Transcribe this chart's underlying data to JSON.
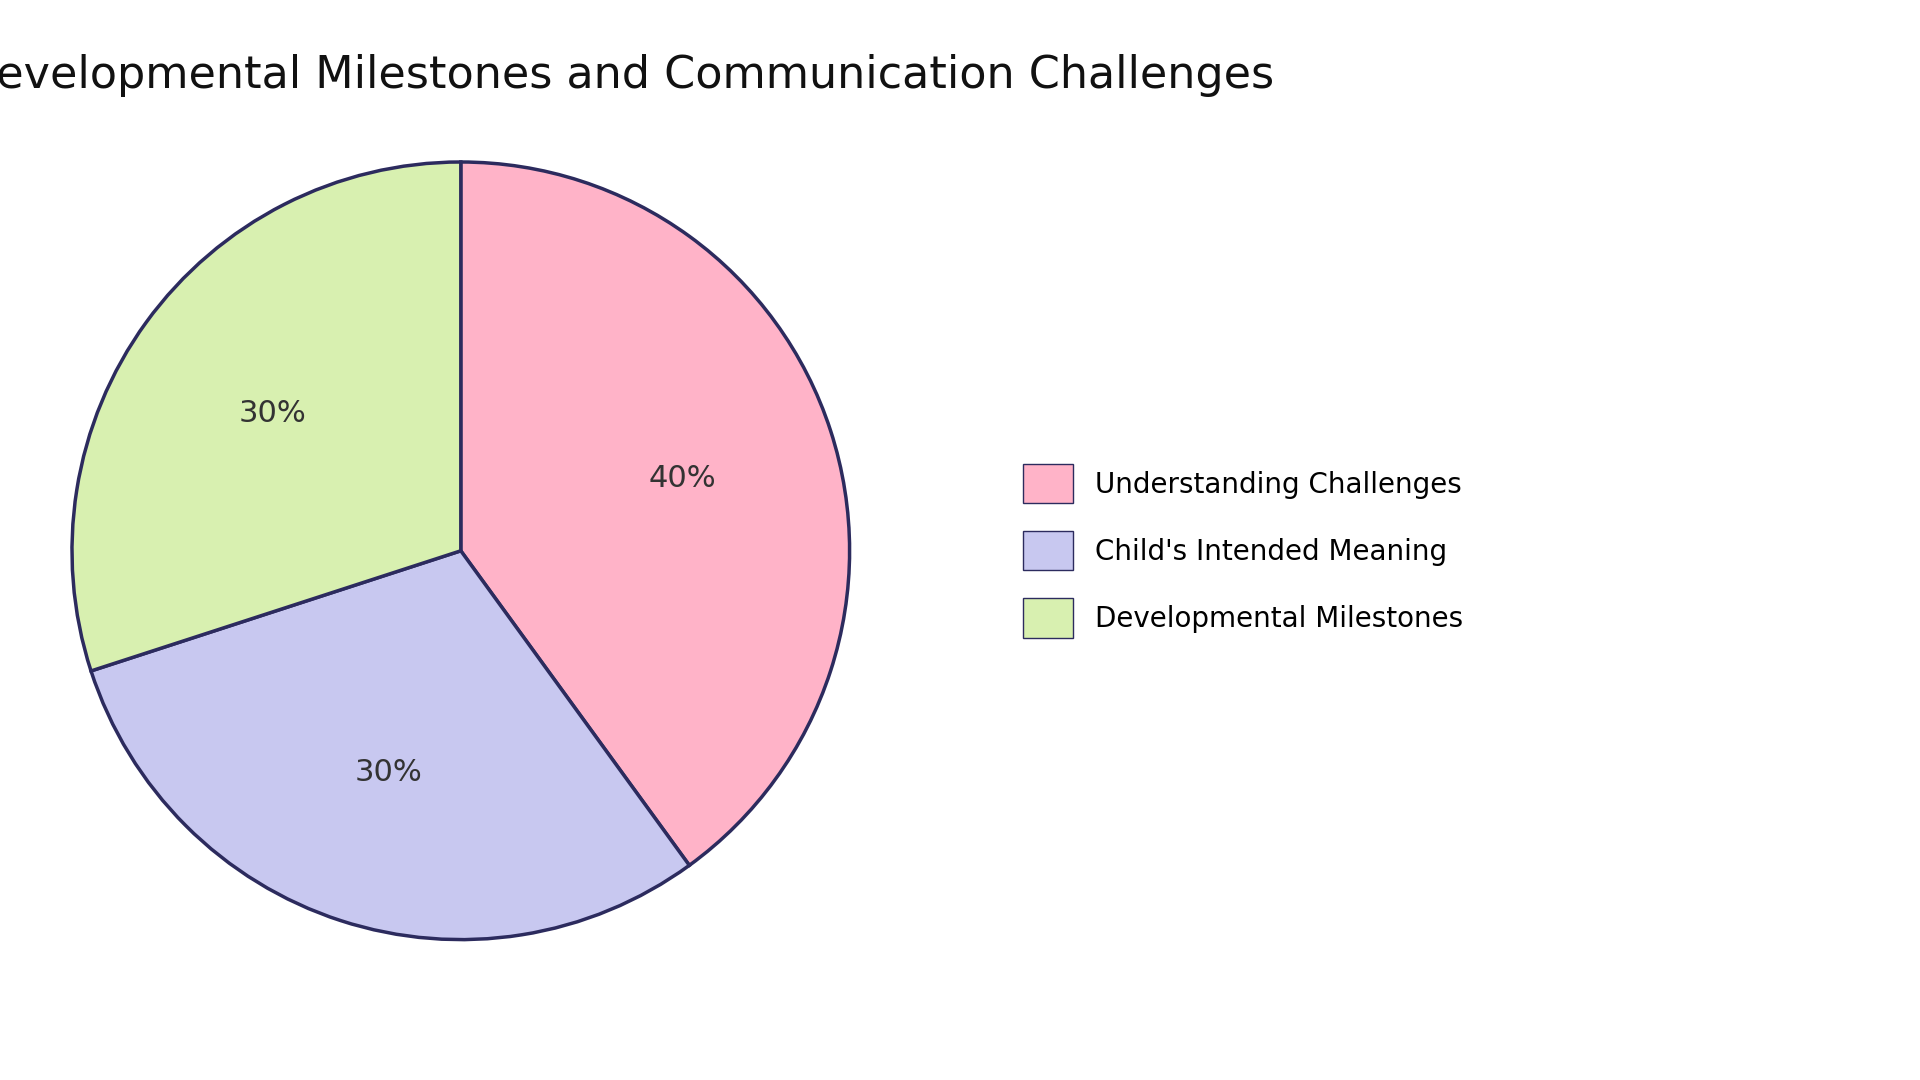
{
  "title": "Developmental Milestones and Communication Challenges",
  "slices": [
    {
      "label": "Understanding Challenges",
      "value": 40,
      "color": "#FFB3C8",
      "pct_label": "40%"
    },
    {
      "label": "Child's Intended Meaning",
      "value": 30,
      "color": "#C8C8F0",
      "pct_label": "30%"
    },
    {
      "label": "Developmental Milestones",
      "value": 30,
      "color": "#D8F0B0",
      "pct_label": "30%"
    }
  ],
  "edge_color": "#2C2B5E",
  "edge_linewidth": 2.5,
  "title_fontsize": 32,
  "label_fontsize": 22,
  "legend_fontsize": 20,
  "background_color": "#FFFFFF",
  "start_angle": 90
}
